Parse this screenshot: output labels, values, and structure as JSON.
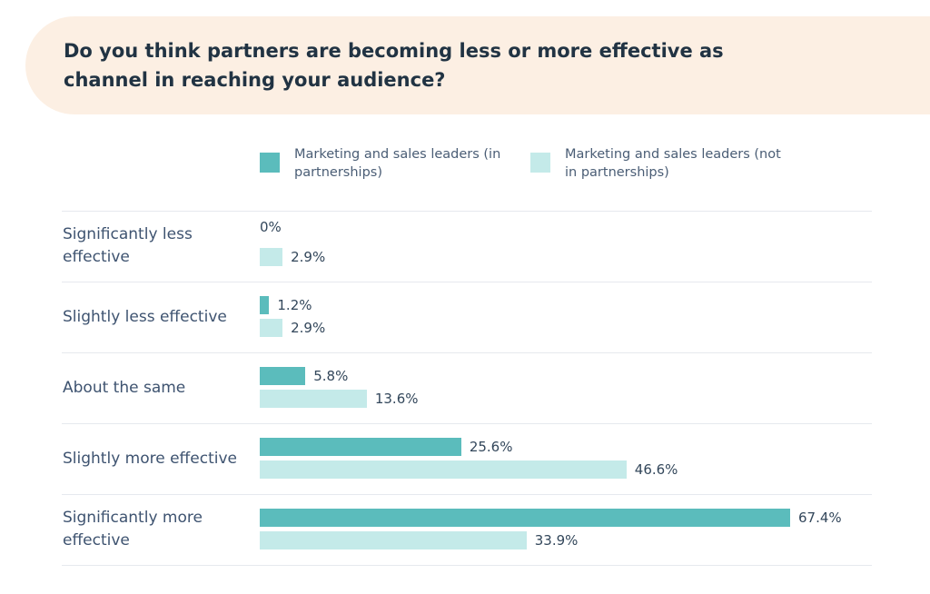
{
  "chart_data": {
    "type": "bar",
    "orientation": "horizontal",
    "title": "Do you think partners are becoming less or more effective as channel in reaching your audience?",
    "categories": [
      "Significantly less effective",
      "Slightly less effective",
      "About the same",
      "Slightly more effective",
      "Significantly more effective"
    ],
    "series": [
      {
        "name": "Marketing and sales leaders (in partnerships)",
        "color": "#5bbcbc",
        "values": [
          0,
          1.2,
          5.8,
          25.6,
          67.4
        ],
        "value_labels": [
          "0%",
          "1.2%",
          "5.8%",
          "25.6%",
          "67.4%"
        ]
      },
      {
        "name": "Marketing and sales leaders (not in partnerships)",
        "color": "#c4eae9",
        "values": [
          2.9,
          2.9,
          13.6,
          46.6,
          33.9
        ],
        "value_labels": [
          "2.9%",
          "2.9%",
          "13.6%",
          "46.6%",
          "33.9%"
        ]
      }
    ]
  }
}
